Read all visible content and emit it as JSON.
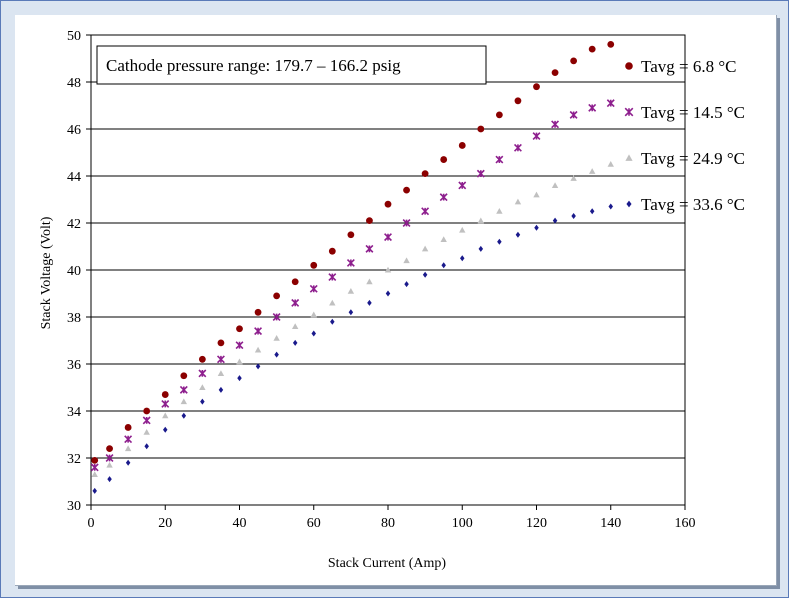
{
  "chart_data": {
    "type": "scatter",
    "title": "",
    "annotation": "Cathode pressure range: 179.7 – 166.2 psig",
    "xlabel": "Stack Current (Amp)",
    "ylabel": "Stack Voltage (Volt)",
    "xlim": [
      0,
      160
    ],
    "ylim": [
      30,
      50
    ],
    "x_ticks": [
      "0",
      "20",
      "40",
      "60",
      "80",
      "100",
      "120",
      "140",
      "160"
    ],
    "y_ticks": [
      "30",
      "32",
      "34",
      "36",
      "38",
      "40",
      "42",
      "44",
      "46",
      "48",
      "50"
    ],
    "grid": "horizontal",
    "legend_position": "right",
    "series": [
      {
        "name": "Tavg = 6.8 °C",
        "marker": "circle",
        "color": "#8b0000",
        "x": [
          1,
          5,
          10,
          15,
          20,
          25,
          30,
          35,
          40,
          45,
          50,
          55,
          60,
          65,
          70,
          75,
          80,
          85,
          90,
          95,
          100,
          105,
          110,
          115,
          120,
          125,
          130,
          135,
          140
        ],
        "y": [
          31.9,
          32.4,
          33.3,
          34.0,
          34.7,
          35.5,
          36.2,
          36.9,
          37.5,
          38.2,
          38.9,
          39.5,
          40.2,
          40.8,
          41.5,
          42.1,
          42.8,
          43.4,
          44.1,
          44.7,
          45.3,
          46.0,
          46.6,
          47.2,
          47.8,
          48.4,
          48.9,
          49.4,
          49.6
        ]
      },
      {
        "name": "Tavg = 14.5 °C",
        "marker": "x",
        "color": "#8e1f8e",
        "x": [
          1,
          5,
          10,
          15,
          20,
          25,
          30,
          35,
          40,
          45,
          50,
          55,
          60,
          65,
          70,
          75,
          80,
          85,
          90,
          95,
          100,
          105,
          110,
          115,
          120,
          125,
          130,
          135,
          140
        ],
        "y": [
          31.6,
          32.0,
          32.8,
          33.6,
          34.3,
          34.9,
          35.6,
          36.2,
          36.8,
          37.4,
          38.0,
          38.6,
          39.2,
          39.7,
          40.3,
          40.9,
          41.4,
          42.0,
          42.5,
          43.1,
          43.6,
          44.1,
          44.7,
          45.2,
          45.7,
          46.2,
          46.6,
          46.9,
          47.1
        ]
      },
      {
        "name": "Tavg = 24.9 °C",
        "marker": "triangle",
        "color": "#c0c0c0",
        "x": [
          1,
          5,
          10,
          15,
          20,
          25,
          30,
          35,
          40,
          45,
          50,
          55,
          60,
          65,
          70,
          75,
          80,
          85,
          90,
          95,
          100,
          105,
          110,
          115,
          120,
          125,
          130,
          135,
          140
        ],
        "y": [
          31.3,
          31.7,
          32.4,
          33.1,
          33.8,
          34.4,
          35.0,
          35.6,
          36.1,
          36.6,
          37.1,
          37.6,
          38.1,
          38.6,
          39.1,
          39.5,
          40.0,
          40.4,
          40.9,
          41.3,
          41.7,
          42.1,
          42.5,
          42.9,
          43.2,
          43.6,
          43.9,
          44.2,
          44.5
        ]
      },
      {
        "name": "Tavg = 33.6 °C",
        "marker": "diamond",
        "color": "#1a1a8c",
        "x": [
          1,
          5,
          10,
          15,
          20,
          25,
          30,
          35,
          40,
          45,
          50,
          55,
          60,
          65,
          70,
          75,
          80,
          85,
          90,
          95,
          100,
          105,
          110,
          115,
          120,
          125,
          130,
          135,
          140
        ],
        "y": [
          30.6,
          31.1,
          31.8,
          32.5,
          33.2,
          33.8,
          34.4,
          34.9,
          35.4,
          35.9,
          36.4,
          36.9,
          37.3,
          37.8,
          38.2,
          38.6,
          39.0,
          39.4,
          39.8,
          40.2,
          40.5,
          40.9,
          41.2,
          41.5,
          41.8,
          42.1,
          42.3,
          42.5,
          42.7
        ]
      }
    ]
  }
}
